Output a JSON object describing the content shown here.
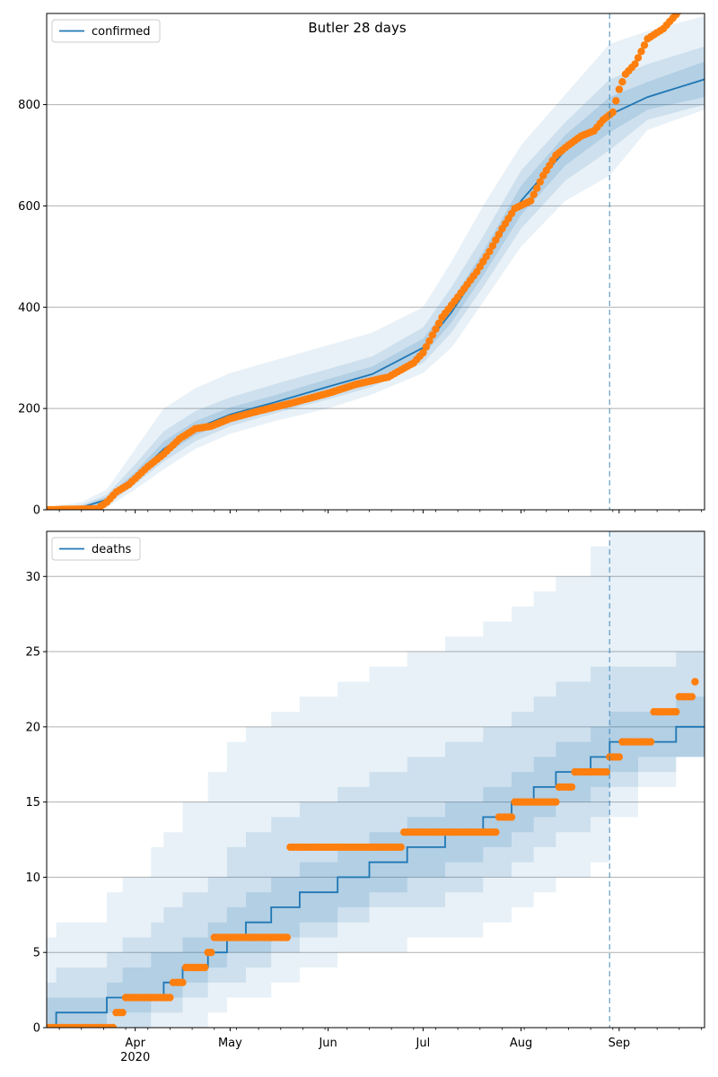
{
  "figure": {
    "title": "Butler 28 days",
    "colors": {
      "model": "#1f77b4",
      "observed": "#ff7f0e",
      "grid": "#b0b0b0",
      "band": "#1f77b4"
    }
  },
  "chart_data": [
    {
      "type": "line",
      "name": "confirmed-panel",
      "legend": [
        "confirmed"
      ],
      "legend_position": "top-left",
      "grid": "horizontal",
      "x_range": [
        "2020-03-04",
        "2020-09-28"
      ],
      "forecast_start": "2020-08-29",
      "ylim": [
        0,
        980
      ],
      "yticks": [
        0,
        200,
        400,
        600,
        800
      ],
      "xticks": [
        {
          "date": "2020-04-01",
          "label": "Apr",
          "sublabel": "2020"
        },
        {
          "date": "2020-05-01",
          "label": "May",
          "sublabel": ""
        },
        {
          "date": "2020-06-01",
          "label": "Jun",
          "sublabel": ""
        },
        {
          "date": "2020-07-01",
          "label": "Jul",
          "sublabel": ""
        },
        {
          "date": "2020-08-01",
          "label": "Aug",
          "sublabel": ""
        },
        {
          "date": "2020-09-01",
          "label": "Sep",
          "sublabel": ""
        }
      ],
      "model": {
        "x": [
          "2020-03-04",
          "2020-03-15",
          "2020-03-23",
          "2020-04-01",
          "2020-04-10",
          "2020-04-20",
          "2020-05-01",
          "2020-05-15",
          "2020-06-01",
          "2020-06-15",
          "2020-07-01",
          "2020-07-10",
          "2020-07-20",
          "2020-08-01",
          "2020-08-15",
          "2020-08-29",
          "2020-09-10",
          "2020-09-28"
        ],
        "median": [
          0,
          5,
          20,
          65,
          120,
          160,
          188,
          212,
          243,
          268,
          320,
          390,
          485,
          610,
          710,
          780,
          815,
          850
        ],
        "bands": [
          {
            "lower": [
              0,
              0,
              5,
              40,
              80,
              120,
              150,
              175,
              200,
              228,
              270,
              320,
              410,
              520,
              610,
              660,
              750,
              790
            ],
            "upper": [
              5,
              15,
              40,
              120,
              200,
              240,
              270,
              295,
              325,
              350,
              400,
              490,
              600,
              720,
              820,
              920,
              945,
              975
            ]
          },
          {
            "lower": [
              0,
              1,
              10,
              50,
              95,
              135,
              165,
              190,
              218,
              243,
              290,
              350,
              440,
              555,
              650,
              710,
              770,
              800
            ],
            "upper": [
              3,
              10,
              30,
              90,
              155,
              195,
              222,
              248,
              278,
              303,
              360,
              440,
              540,
              670,
              765,
              850,
              880,
              915
            ]
          },
          {
            "lower": [
              0,
              2,
              14,
              57,
              107,
              147,
              176,
              200,
              230,
              255,
              305,
              370,
              462,
              582,
              680,
              745,
              790,
              815
            ],
            "upper": [
              1,
              7,
              25,
              75,
              135,
              175,
              202,
              226,
              258,
              283,
              338,
              412,
              510,
              640,
              740,
              815,
              845,
              885
            ]
          }
        ]
      },
      "observed": {
        "x": [
          "2020-03-04",
          "2020-03-20",
          "2020-03-23",
          "2020-03-26",
          "2020-03-30",
          "2020-04-05",
          "2020-04-10",
          "2020-04-15",
          "2020-04-20",
          "2020-04-25",
          "2020-05-01",
          "2020-05-10",
          "2020-05-20",
          "2020-06-01",
          "2020-06-10",
          "2020-06-20",
          "2020-06-28",
          "2020-07-01",
          "2020-07-07",
          "2020-07-12",
          "2020-07-18",
          "2020-07-22",
          "2020-07-26",
          "2020-07-30",
          "2020-08-04",
          "2020-08-08",
          "2020-08-12",
          "2020-08-16",
          "2020-08-20",
          "2020-08-24",
          "2020-08-27",
          "2020-08-30",
          "2020-09-01",
          "2020-09-03",
          "2020-09-06",
          "2020-09-10",
          "2020-09-15",
          "2020-09-20"
        ],
        "y": [
          0,
          2,
          15,
          35,
          50,
          85,
          110,
          140,
          160,
          165,
          180,
          195,
          210,
          230,
          248,
          262,
          290,
          310,
          380,
          420,
          470,
          510,
          555,
          595,
          610,
          660,
          700,
          720,
          738,
          748,
          770,
          785,
          830,
          860,
          880,
          930,
          950,
          985
        ]
      }
    },
    {
      "type": "line",
      "name": "deaths-panel",
      "legend": [
        "deaths"
      ],
      "legend_position": "top-left",
      "grid": "horizontal",
      "x_range": [
        "2020-03-04",
        "2020-09-28"
      ],
      "forecast_start": "2020-08-29",
      "ylim": [
        0,
        33
      ],
      "yticks": [
        0,
        5,
        10,
        15,
        20,
        25,
        30
      ],
      "xticks": [
        {
          "date": "2020-04-01",
          "label": "Apr",
          "sublabel": "2020"
        },
        {
          "date": "2020-05-01",
          "label": "May",
          "sublabel": ""
        },
        {
          "date": "2020-06-01",
          "label": "Jun",
          "sublabel": ""
        },
        {
          "date": "2020-07-01",
          "label": "Jul",
          "sublabel": ""
        },
        {
          "date": "2020-08-01",
          "label": "Aug",
          "sublabel": ""
        },
        {
          "date": "2020-09-01",
          "label": "Sep",
          "sublabel": ""
        }
      ],
      "model": {
        "x": [
          "2020-03-04",
          "2020-03-07",
          "2020-03-23",
          "2020-03-28",
          "2020-04-06",
          "2020-04-10",
          "2020-04-16",
          "2020-04-24",
          "2020-04-30",
          "2020-05-06",
          "2020-05-14",
          "2020-05-23",
          "2020-06-04",
          "2020-06-14",
          "2020-06-26",
          "2020-07-08",
          "2020-07-20",
          "2020-07-29",
          "2020-08-05",
          "2020-08-12",
          "2020-08-23",
          "2020-08-29",
          "2020-09-07",
          "2020-09-19",
          "2020-09-28"
        ],
        "median": [
          0,
          1,
          2,
          2,
          2,
          3,
          4,
          5,
          6,
          7,
          8,
          9,
          10,
          11,
          12,
          13,
          14,
          15,
          16,
          17,
          18,
          19,
          19,
          20,
          20
        ],
        "bands": [
          {
            "lower": [
              0,
              0,
              0,
              0,
              0,
              0,
              0,
              1,
              2,
              2,
              3,
              4,
              5,
              5,
              6,
              6,
              7,
              8,
              9,
              10,
              11,
              14,
              16,
              18,
              19
            ],
            "upper": [
              6,
              7,
              9,
              10,
              12,
              13,
              15,
              17,
              19,
              20,
              21,
              22,
              23,
              24,
              25,
              26,
              27,
              28,
              29,
              30,
              32,
              33,
              33,
              33,
              33
            ]
          },
          {
            "lower": [
              0,
              0,
              0,
              0,
              1,
              1,
              2,
              3,
              3,
              4,
              5,
              6,
              7,
              8,
              8,
              9,
              10,
              11,
              12,
              13,
              14,
              16,
              17,
              18,
              19
            ],
            "upper": [
              3,
              4,
              5,
              6,
              7,
              8,
              9,
              10,
              12,
              13,
              14,
              15,
              16,
              17,
              18,
              19,
              20,
              21,
              22,
              23,
              24,
              24,
              24,
              25,
              25
            ]
          },
          {
            "lower": [
              0,
              0,
              1,
              1,
              2,
              2,
              3,
              4,
              5,
              5,
              6,
              7,
              8,
              9,
              10,
              11,
              12,
              13,
              14,
              15,
              16,
              17,
              18,
              18,
              19
            ],
            "upper": [
              2,
              2,
              3,
              4,
              5,
              5,
              6,
              7,
              8,
              9,
              10,
              11,
              12,
              13,
              14,
              15,
              16,
              17,
              18,
              19,
              20,
              21,
              21,
              22,
              22
            ]
          }
        ]
      },
      "observed": {
        "x": [
          "2020-03-04",
          "2020-03-26",
          "2020-03-29",
          "2020-04-03",
          "2020-04-09",
          "2020-04-13",
          "2020-04-17",
          "2020-04-24",
          "2020-04-26",
          "2020-05-01",
          "2020-05-20",
          "2020-06-01",
          "2020-06-10",
          "2020-06-17",
          "2020-06-25",
          "2020-07-05",
          "2020-07-12",
          "2020-07-20",
          "2020-07-25",
          "2020-07-30",
          "2020-08-05",
          "2020-08-11",
          "2020-08-13",
          "2020-08-18",
          "2020-08-25",
          "2020-08-29",
          "2020-09-02",
          "2020-09-08",
          "2020-09-12",
          "2020-09-15",
          "2020-09-20",
          "2020-09-25"
        ],
        "y": [
          0,
          1,
          2,
          2,
          2,
          3,
          4,
          5,
          6,
          6,
          12,
          12,
          12,
          12,
          13,
          13,
          13,
          13,
          14,
          15,
          15,
          15,
          16,
          17,
          17,
          18,
          19,
          19,
          21,
          21,
          22,
          23
        ]
      }
    }
  ]
}
